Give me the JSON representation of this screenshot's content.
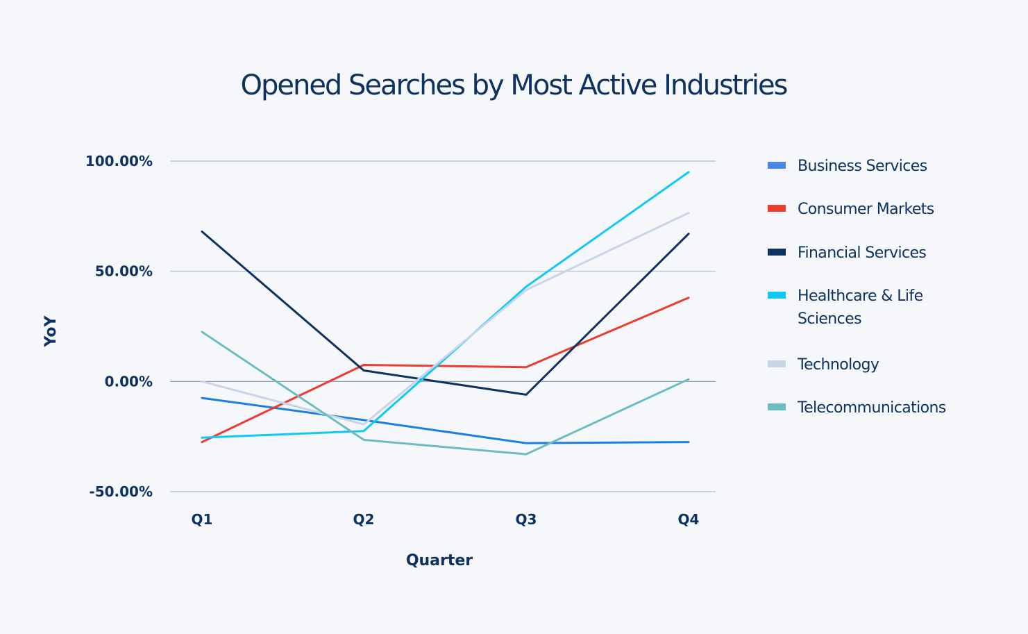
{
  "chart_data": {
    "type": "line",
    "title": "Opened Searches by Most Active Industries",
    "xlabel": "Quarter",
    "ylabel": "YoY",
    "categories": [
      "Q1",
      "Q2",
      "Q3",
      "Q4"
    ],
    "ylim": [
      -50,
      100
    ],
    "yticks": [
      100,
      50,
      0,
      -50
    ],
    "ytick_labels": [
      "100.00%",
      "50.00%",
      "0.00%",
      "-50.00%"
    ],
    "grid": true,
    "legend_position": "right",
    "series": [
      {
        "name": "Business Services",
        "color": "#1a7fe0",
        "legend_color": "#4a86e8",
        "values": [
          -7.5,
          -17.5,
          -28,
          -27.5
        ]
      },
      {
        "name": "Consumer Markets",
        "color": "#ee3b2f",
        "values": [
          -27.5,
          7.5,
          6.5,
          38
        ]
      },
      {
        "name": "Financial Services",
        "color": "#0d3260",
        "values": [
          68,
          5,
          -6,
          67
        ]
      },
      {
        "name": "Healthcare & Life Sciences",
        "legend_lines": [
          "Healthcare & Life",
          "Sciences"
        ],
        "color": "#10c8f6",
        "values": [
          -25.5,
          -22.5,
          43,
          95
        ]
      },
      {
        "name": "Technology",
        "color": "#c8d5e6",
        "values": [
          0,
          -19.5,
          41.5,
          76.5
        ]
      },
      {
        "name": "Telecommunications",
        "color": "#6cbdc1",
        "values": [
          22.5,
          -26.5,
          -33,
          1
        ]
      }
    ]
  }
}
